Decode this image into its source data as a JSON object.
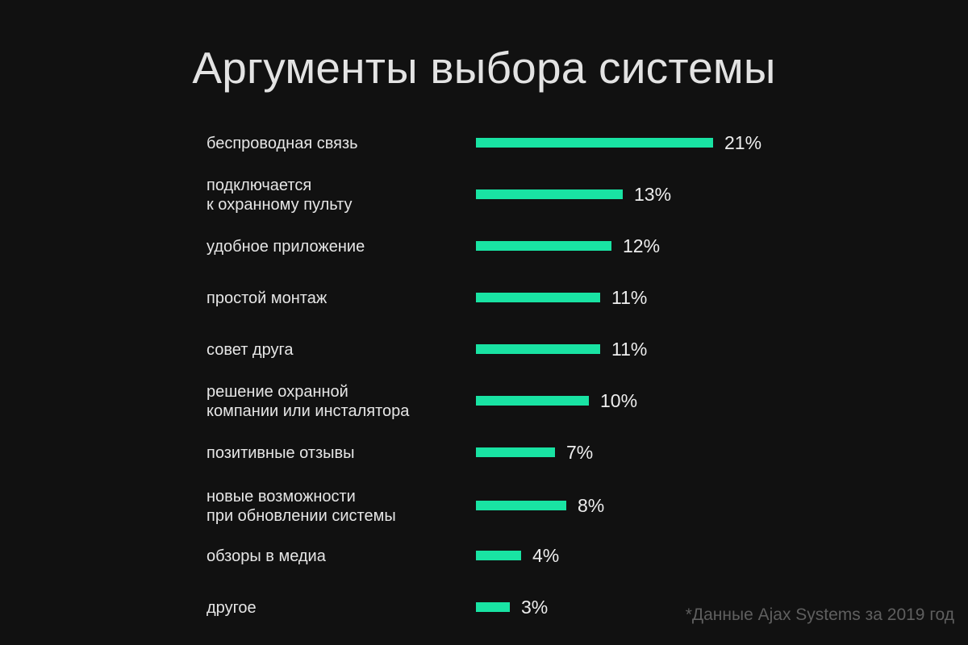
{
  "title": "Аргументы выбора системы",
  "footnote": "*Данные Ajax Systems за 2019 год",
  "colors": {
    "background": "#111111",
    "bar": "#19e3a3",
    "text": "#e6e6e6",
    "footnote": "#5f5f5f"
  },
  "chart_data": {
    "type": "bar",
    "orientation": "horizontal",
    "title": "Аргументы выбора системы",
    "categories": [
      [
        "беспроводная связь"
      ],
      [
        "подключается",
        "к охранному пульту"
      ],
      [
        "удобное приложение"
      ],
      [
        "простой монтаж"
      ],
      [
        "совет друга"
      ],
      [
        "решение охранной",
        "компании или инсталятора"
      ],
      [
        "позитивные отзывы"
      ],
      [
        "новые возможности",
        "при обновлении системы"
      ],
      [
        "обзоры в медиа"
      ],
      [
        "другое"
      ]
    ],
    "values": [
      21,
      13,
      12,
      11,
      11,
      10,
      7,
      8,
      4,
      3
    ],
    "value_labels": [
      "21%",
      "13%",
      "12%",
      "11%",
      "11%",
      "10%",
      "7%",
      "8%",
      "4%",
      "3%"
    ],
    "unit": "%",
    "xlim": [
      0,
      21
    ],
    "grid": false,
    "legend": "none"
  }
}
